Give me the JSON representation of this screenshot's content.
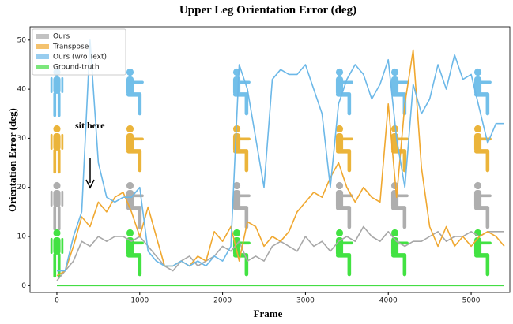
{
  "chart_data": {
    "type": "line",
    "title": "Upper Leg Orientation Error (deg)",
    "x_label": "Frame",
    "y_label": "Orientation Error (deg)",
    "annotation": "sit here",
    "legend": "upper left",
    "xlim": [
      -324,
      5467
    ],
    "ylim": [
      -1.4,
      52.7
    ],
    "xticks": [
      0,
      1000,
      2000,
      3000,
      4000,
      5000
    ],
    "yticks": [
      0,
      10,
      20,
      30,
      40,
      50
    ],
    "x": [
      0,
      100,
      200,
      300,
      400,
      500,
      600,
      700,
      800,
      900,
      1000,
      1100,
      1200,
      1300,
      1400,
      1500,
      1600,
      1700,
      1800,
      1900,
      2000,
      2100,
      2200,
      2300,
      2400,
      2500,
      2600,
      2700,
      2800,
      2900,
      3000,
      3100,
      3200,
      3300,
      3400,
      3500,
      3600,
      3700,
      3800,
      3900,
      4000,
      4100,
      4200,
      4300,
      4400,
      4500,
      4600,
      4700,
      4800,
      4900,
      5000,
      5100,
      5200,
      5300,
      5400
    ],
    "series": [
      {
        "name": "Ours",
        "color": "#a8a8a8",
        "values": [
          1,
          3,
          5,
          9,
          8,
          10,
          9,
          10,
          10,
          9,
          10,
          8,
          6,
          4,
          3,
          5,
          6,
          4,
          5,
          6,
          8,
          7,
          9,
          5,
          6,
          5,
          8,
          9,
          8,
          7,
          10,
          8,
          9,
          7,
          9,
          10,
          9,
          12,
          10,
          9,
          11,
          9,
          8,
          9,
          9,
          10,
          11,
          9,
          10,
          10,
          11,
          10,
          11,
          11,
          11
        ]
      },
      {
        "name": "Transpose",
        "color": "#f0a830",
        "values": [
          2,
          3,
          8,
          14,
          12,
          17,
          15,
          18,
          19,
          15,
          10,
          16,
          10,
          4,
          4,
          5,
          4,
          6,
          5,
          11,
          9,
          12,
          5,
          13,
          12,
          8,
          10,
          9,
          11,
          15,
          17,
          19,
          18,
          22,
          25,
          20,
          17,
          20,
          18,
          17,
          37,
          18,
          37,
          48,
          24,
          12,
          8,
          12,
          8,
          10,
          8,
          10,
          11,
          10,
          8
        ]
      },
      {
        "name": "Ours (w/o Text)",
        "color": "#6cb8e8",
        "values": [
          3,
          3,
          10,
          15,
          50,
          25,
          18,
          17,
          18,
          18,
          20,
          7,
          5,
          4,
          4,
          5,
          4,
          5,
          4,
          6,
          5,
          8,
          45,
          40,
          30,
          20,
          42,
          44,
          43,
          43,
          45,
          40,
          35,
          20,
          37,
          42,
          45,
          43,
          38,
          41,
          46,
          30,
          20,
          41,
          35,
          38,
          45,
          40,
          47,
          42,
          43,
          36,
          29,
          33,
          33
        ]
      },
      {
        "name": "Ground-truth",
        "color": "#44dd44",
        "values": [
          0,
          0,
          0,
          0,
          0,
          0,
          0,
          0,
          0,
          0,
          0,
          0,
          0,
          0,
          0,
          0,
          0,
          0,
          0,
          0,
          0,
          0,
          0,
          0,
          0,
          0,
          0,
          0,
          0,
          0,
          0,
          0,
          0,
          0,
          0,
          0,
          0,
          0,
          0,
          0,
          0,
          0,
          0,
          0,
          0,
          0,
          0,
          0,
          0,
          0,
          0,
          0,
          0,
          0,
          0
        ]
      }
    ]
  }
}
